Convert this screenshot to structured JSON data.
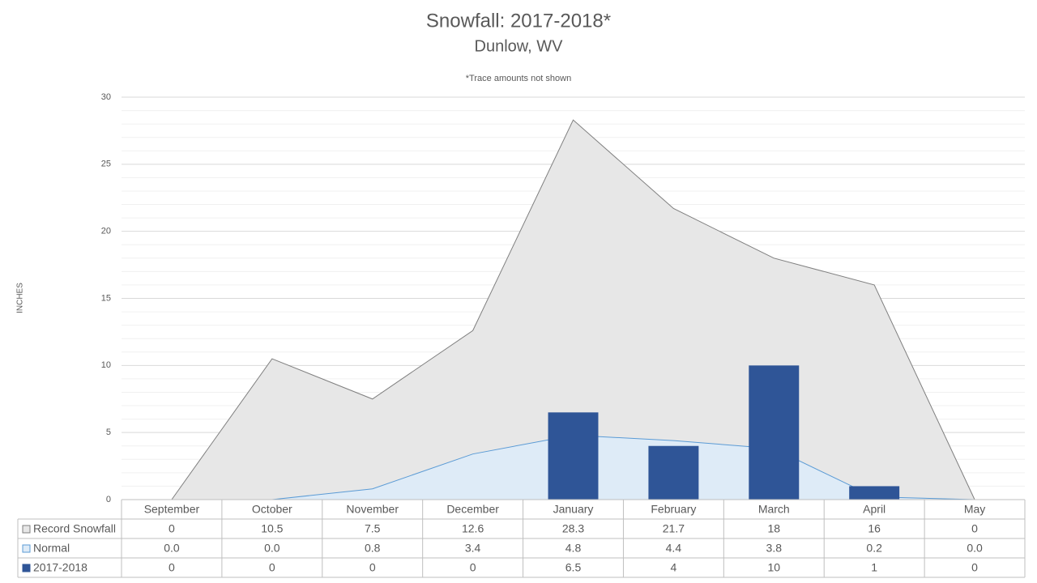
{
  "chart_data": {
    "type": "combo",
    "title": "Snowfall: 2017-2018*",
    "subtitle": "Dunlow, WV",
    "annotation": "*Trace amounts not shown",
    "y_label": "INCHES",
    "categories": [
      "September",
      "October",
      "November",
      "December",
      "January",
      "February",
      "March",
      "April",
      "May"
    ],
    "series": [
      {
        "name": "Record Snowfall",
        "type": "area",
        "color": "#e7e7e7",
        "line_color": "#7f7f7f",
        "values": [
          0,
          10.5,
          7.5,
          12.6,
          28.3,
          21.7,
          18,
          16,
          0
        ]
      },
      {
        "name": "Normal",
        "type": "area",
        "color": "#deebf7",
        "line_color": "#5b9bd5",
        "values": [
          0,
          0,
          0.8,
          3.4,
          4.8,
          4.4,
          3.8,
          0.2,
          0
        ],
        "value_labels": [
          "0.0",
          "0.0",
          "0.8",
          "3.4",
          "4.8",
          "4.4",
          "3.8",
          "0.2",
          "0.0"
        ]
      },
      {
        "name": "2017-2018",
        "type": "bar",
        "color": "#2f5597",
        "values": [
          0,
          0,
          0,
          0,
          6.5,
          4,
          10,
          1,
          0
        ]
      }
    ],
    "ylim": [
      0,
      30
    ],
    "yticks": [
      0,
      5,
      10,
      15,
      20,
      25,
      30
    ],
    "minor_ystep": 1,
    "grid": true,
    "data_table": true
  }
}
